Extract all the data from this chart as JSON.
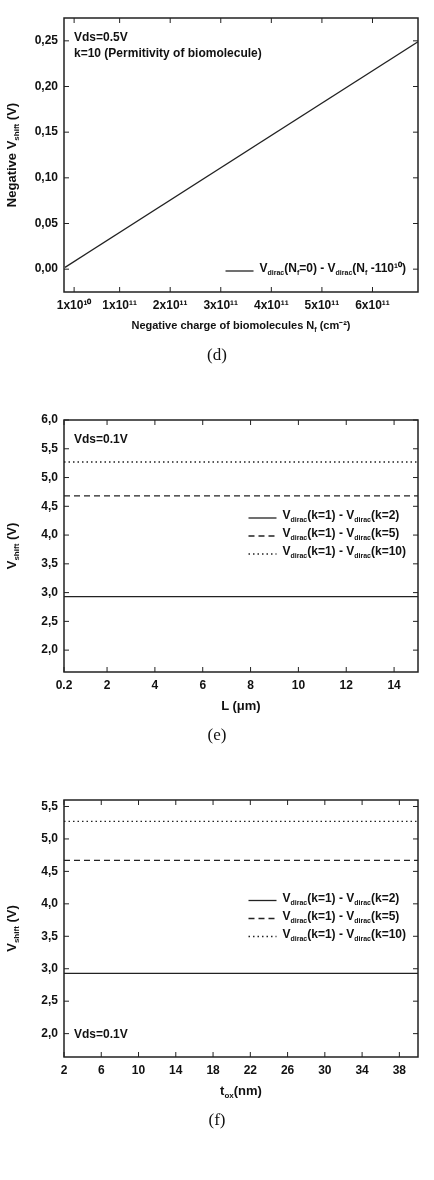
{
  "chart_data": [
    {
      "type": "line",
      "xlabel": "Negative charge of biomolecules N$_{f}$ (cm⁻²)",
      "ylabel": "Negative V$_{shift}$ (V)",
      "xlim": [
        -10000000000.0,
        690000000000.0
      ],
      "xticks": [
        {
          "value": 10000000000.0,
          "label": "1x10¹⁰"
        },
        {
          "value": 100000000000.0,
          "label": "1x10¹¹"
        },
        {
          "value": 200000000000.0,
          "label": "2x10¹¹"
        },
        {
          "value": 300000000000.0,
          "label": "3x10¹¹"
        },
        {
          "value": 400000000000.0,
          "label": "4x10¹¹"
        },
        {
          "value": 500000000000.0,
          "label": "5x10¹¹"
        },
        {
          "value": 600000000000.0,
          "label": "6x10¹¹"
        }
      ],
      "ylim": [
        -0.025,
        0.275
      ],
      "yticks": [
        {
          "value": 0,
          "label": "0,00"
        },
        {
          "value": 0.05,
          "label": "0,05"
        },
        {
          "value": 0.1,
          "label": "0,10"
        },
        {
          "value": 0.15,
          "label": "0,15"
        },
        {
          "value": 0.2,
          "label": "0,20"
        },
        {
          "value": 0.25,
          "label": "0,25"
        }
      ],
      "series": [
        {
          "name": "V$_{dirac}$(N$_{f}$=0) - V$_{dirac}$(N$_{f}$ -110¹⁰)",
          "color": "#222222",
          "line_style": "solid",
          "x": [
            -8000000000.0,
            690000000000.0
          ],
          "values": [
            0.002,
            0.249
          ]
        }
      ],
      "legend": "bottom right",
      "marker": "none",
      "grid": false,
      "annotations": [
        "Vds=0.5V",
        "k=10 (Permitivity of biomolecule)",
        "(d)"
      ]
    },
    {
      "type": "line",
      "xlabel": "L (μm)",
      "ylabel": "V$_{shift}$ (V)",
      "xlim": [
        0.2,
        15
      ],
      "xticks": [
        0.2,
        2,
        4,
        6,
        8,
        10,
        12,
        14
      ],
      "ylim": [
        1.62,
        6.0
      ],
      "yticks": [
        {
          "value": 2,
          "label": "2,0"
        },
        {
          "value": 2.5,
          "label": "2,5"
        },
        {
          "value": 3,
          "label": "3,0"
        },
        {
          "value": 3.5,
          "label": "3,5"
        },
        {
          "value": 4,
          "label": "4,0"
        },
        {
          "value": 4.5,
          "label": "4,5"
        },
        {
          "value": 5,
          "label": "5,0"
        },
        {
          "value": 5.5,
          "label": "5,5"
        },
        {
          "value": 6,
          "label": "6,0"
        }
      ],
      "x": [
        0.2,
        15
      ],
      "series": [
        {
          "name": "V$_{dirac}$(k=1) - V$_{dirac}$(k=2)",
          "color": "#222222",
          "line_style": "solid",
          "values": [
            2.93,
            2.93
          ]
        },
        {
          "name": "V$_{dirac}$(k=1) - V$_{dirac}$(k=5)",
          "color": "#222222",
          "line_style": "dashed",
          "values": [
            4.68,
            4.68
          ]
        },
        {
          "name": "V$_{dirac}$(k=1) - V$_{dirac}$(k=10)",
          "color": "#222222",
          "line_style": "dotted",
          "values": [
            5.27,
            5.27
          ]
        }
      ],
      "legend": "right",
      "marker": "none",
      "grid": false,
      "annotations": [
        "Vds=0.1V",
        "(e)"
      ]
    },
    {
      "type": "line",
      "xlabel": "t$_{ox}$(nm)",
      "ylabel": "V$_{shift}$ (V)",
      "xlim": [
        2,
        40
      ],
      "xticks": [
        2,
        6,
        10,
        14,
        18,
        22,
        26,
        30,
        34,
        38
      ],
      "ylim": [
        1.64,
        5.6
      ],
      "yticks": [
        {
          "value": 2,
          "label": "2,0"
        },
        {
          "value": 2.5,
          "label": "2,5"
        },
        {
          "value": 3,
          "label": "3,0"
        },
        {
          "value": 3.5,
          "label": "3,5"
        },
        {
          "value": 4,
          "label": "4,0"
        },
        {
          "value": 4.5,
          "label": "4,5"
        },
        {
          "value": 5,
          "label": "5,0"
        },
        {
          "value": 5.5,
          "label": "5,5"
        }
      ],
      "x": [
        2,
        40
      ],
      "series": [
        {
          "name": "V$_{dirac}$(k=1) - V$_{dirac}$(k=2)",
          "color": "#222222",
          "line_style": "solid",
          "values": [
            2.93,
            2.93
          ]
        },
        {
          "name": "V$_{dirac}$(k=1) - V$_{dirac}$(k=5)",
          "color": "#222222",
          "line_style": "dashed",
          "values": [
            4.67,
            4.67
          ]
        },
        {
          "name": "V$_{dirac}$(k=1) - V$_{dirac}$(k=10)",
          "color": "#222222",
          "line_style": "dotted",
          "values": [
            5.27,
            5.27
          ]
        }
      ],
      "legend": "right",
      "marker": "none",
      "grid": false,
      "annotations": [
        "Vds=0.1V",
        "(f)"
      ]
    }
  ]
}
